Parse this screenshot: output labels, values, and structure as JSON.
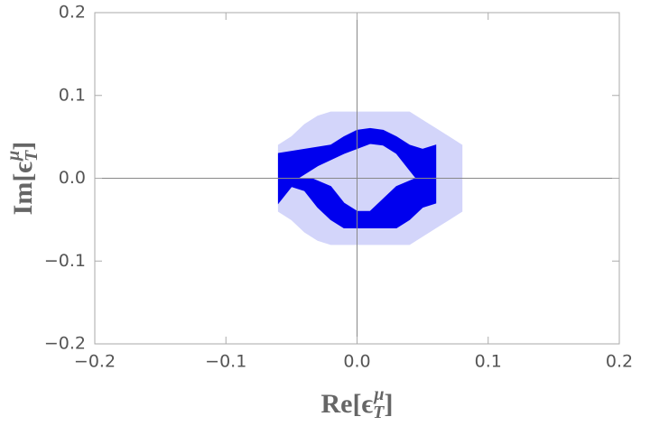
{
  "chart_data": {
    "type": "region",
    "xlabel": {
      "head": "Re[ϵ",
      "sub": "T",
      "sup": "μ",
      "tail": "]"
    },
    "ylabel": {
      "head": "Im[ϵ",
      "sub": "T",
      "sup": "μ",
      "tail": "]"
    },
    "xlim": [
      -0.2,
      0.2
    ],
    "ylim": [
      -0.2,
      0.2
    ],
    "xticks": [
      {
        "value": -0.2,
        "label": "−0.2"
      },
      {
        "value": -0.1,
        "label": "−0.1"
      },
      {
        "value": 0,
        "label": "0.0"
      },
      0.1,
      0.2
    ],
    "yticks": [
      {
        "value": -0.2,
        "label": "−0.2"
      },
      {
        "value": -0.1,
        "label": "−0.1"
      },
      {
        "value": 0,
        "label": "0.0"
      },
      0.1,
      0.2
    ],
    "regions": [
      {
        "color": "#d3d5fa",
        "x": [
          -0.06,
          -0.05,
          -0.04,
          -0.03,
          -0.02,
          0.04,
          0.05,
          0.06,
          0.07,
          0.08,
          0.08,
          0.07,
          0.06,
          0.05,
          0.04,
          -0.02,
          -0.03,
          -0.04,
          -0.05,
          -0.06
        ],
        "y": [
          0.04,
          0.05,
          0.065,
          0.075,
          0.08,
          0.08,
          0.07,
          0.06,
          0.05,
          0.04,
          -0.04,
          -0.05,
          -0.06,
          -0.07,
          -0.08,
          -0.08,
          -0.075,
          -0.065,
          -0.05,
          -0.04
        ]
      },
      {
        "color": "#0000ee",
        "x": [
          -0.06,
          -0.04,
          -0.02,
          -0.01,
          0,
          0.01,
          0.02,
          0.03,
          0.04,
          0.05,
          0.06,
          0.06,
          0.05,
          0.04,
          0.03,
          -0.01,
          -0.02,
          -0.03,
          -0.04,
          -0.05,
          -0.06,
          null,
          -0.045,
          -0.03,
          -0.01,
          0.01,
          0.02,
          0.03,
          0.04,
          0.045,
          0.03,
          0.01,
          0,
          -0.01,
          -0.02,
          -0.035
        ],
        "y": [
          0.03,
          0.035,
          0.04,
          0.05,
          0.058,
          0.06,
          0.058,
          0.05,
          0.04,
          0.035,
          0.04,
          -0.03,
          -0.035,
          -0.05,
          -0.06,
          -0.06,
          -0.05,
          -0.035,
          -0.015,
          -0.01,
          -0.03,
          null,
          0,
          0.015,
          0.03,
          0.042,
          0.04,
          0.03,
          0.01,
          0,
          -0.01,
          -0.04,
          -0.04,
          -0.03,
          -0.01,
          0
        ]
      }
    ],
    "zero_lines": true
  }
}
